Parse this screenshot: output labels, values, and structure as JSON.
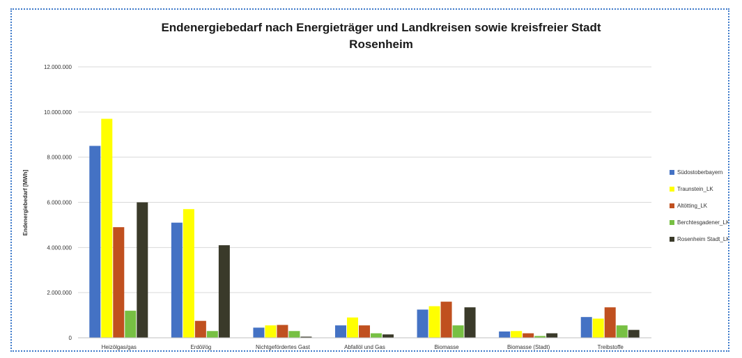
{
  "chart_data": {
    "type": "bar",
    "title_line1": "Endenergiebedarf nach Energieträger und Landkreisen sowie kreisfreier Stadt",
    "title_line2": "Rosenheim",
    "ylabel": "Endenergiebedarf [MWh]",
    "ylim": [
      0,
      12000000
    ],
    "yticks": [
      "0",
      "2.000.000",
      "4.000.000",
      "6.000.000",
      "8.000.000",
      "10.000.000",
      "12.000.000"
    ],
    "grid": true,
    "legend_position": "right",
    "categories": [
      "Heizölgas/gas",
      "Erdöl/ög",
      "Nichtgefördertes Gast",
      "Abfallöl und Gas",
      "Biomasse",
      "Biomasse (Stadt)",
      "Treibstoffe"
    ],
    "series": [
      {
        "name": "Südostoberbayern",
        "color": "#4472c4",
        "values": [
          8500000,
          5100000,
          450000,
          550000,
          1250000,
          280000,
          920000
        ]
      },
      {
        "name": "Traunstein_LK",
        "color": "#ffff00",
        "values": [
          9700000,
          5700000,
          550000,
          900000,
          1400000,
          300000,
          850000
        ]
      },
      {
        "name": "Altötting_LK",
        "color": "#c0501f",
        "values": [
          4900000,
          750000,
          570000,
          550000,
          1600000,
          200000,
          1350000
        ]
      },
      {
        "name": "Berchtesgadener_LK",
        "color": "#77c043",
        "values": [
          1200000,
          300000,
          300000,
          200000,
          550000,
          80000,
          550000
        ]
      },
      {
        "name": "Rosenheim Stadt_LK",
        "color": "#3a3a2a",
        "values": [
          6000000,
          4100000,
          50000,
          150000,
          1350000,
          200000,
          350000
        ]
      }
    ]
  }
}
